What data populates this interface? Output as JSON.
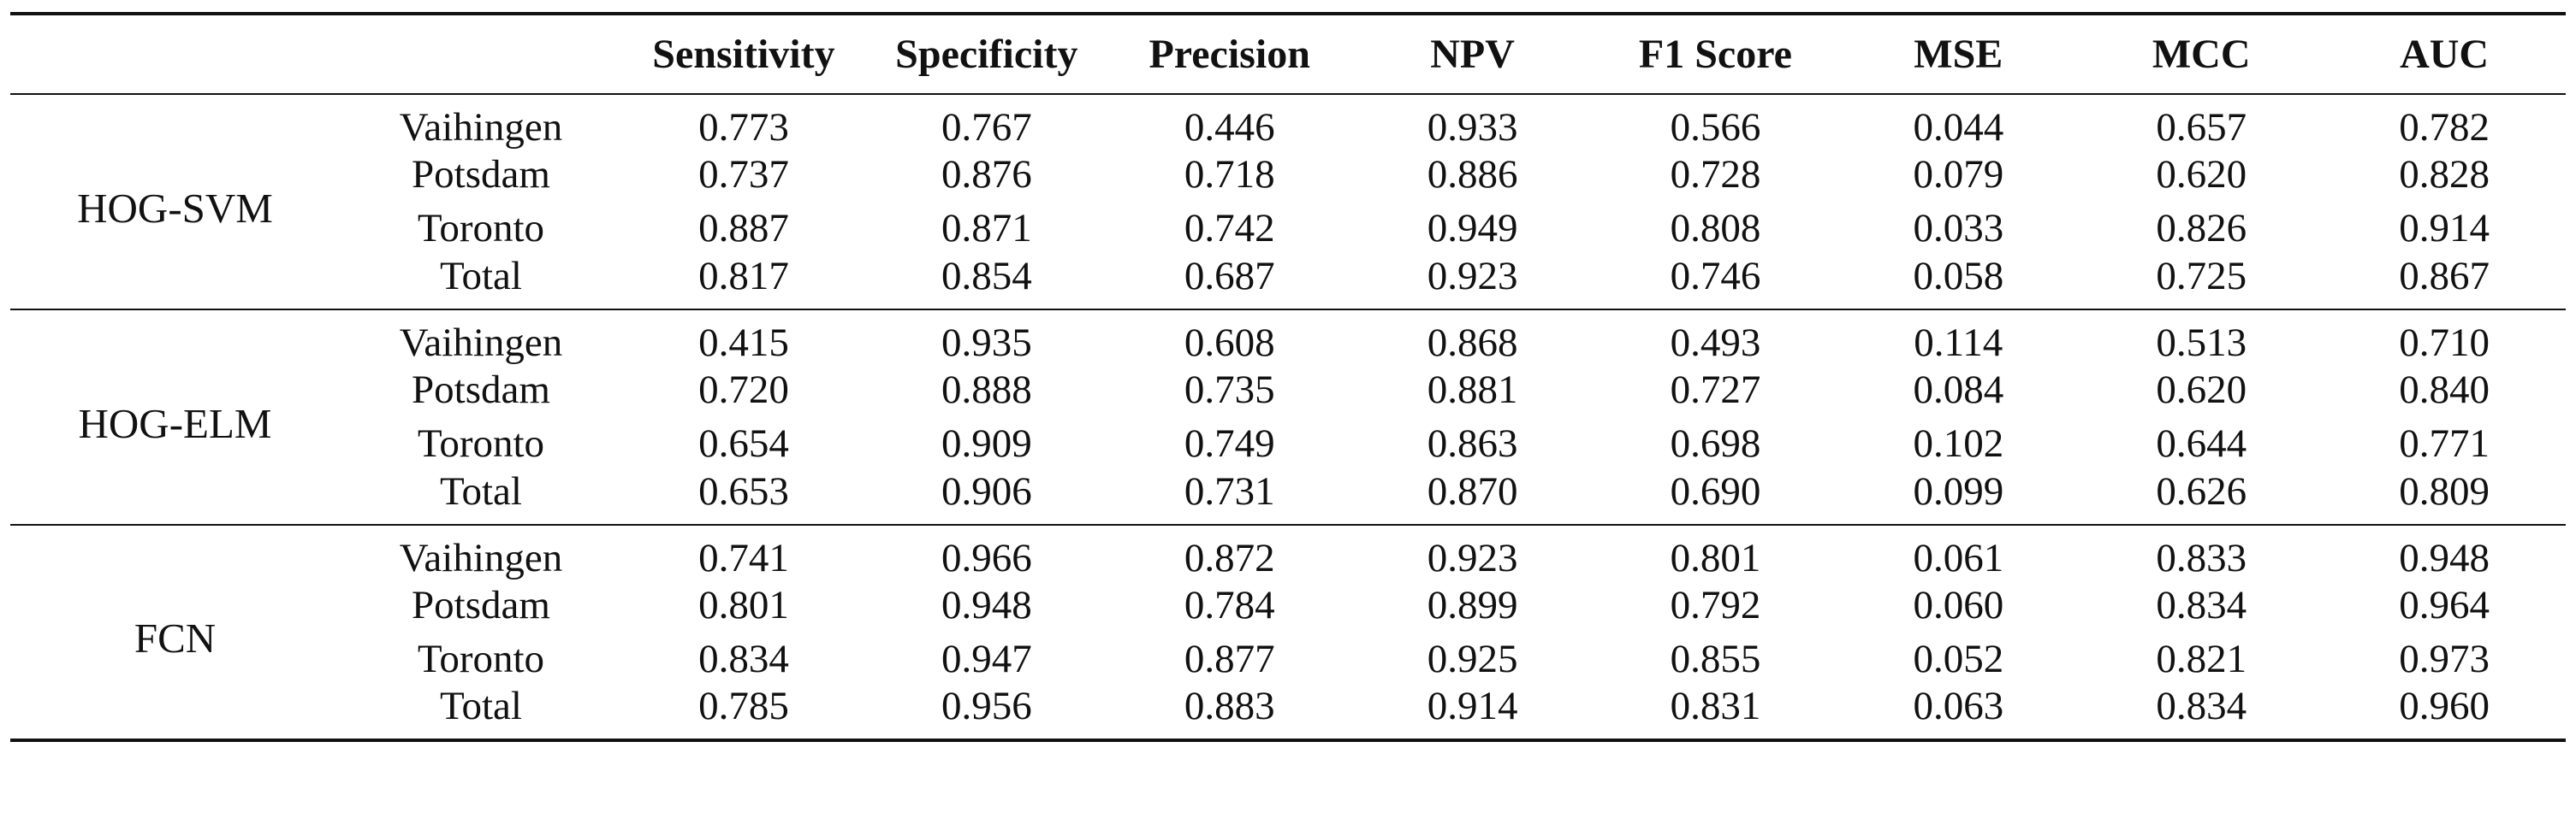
{
  "table": {
    "headers": [
      "",
      "",
      "Sensitivity",
      "Specificity",
      "Precision",
      "NPV",
      "F1 Score",
      "MSE",
      "MCC",
      "AUC"
    ],
    "groups": [
      {
        "method": "HOG-SVM",
        "rows": [
          {
            "dataset": "Vaihingen",
            "values": [
              "0.773",
              "0.767",
              "0.446",
              "0.933",
              "0.566",
              "0.044",
              "0.657",
              "0.782"
            ]
          },
          {
            "dataset": "Potsdam",
            "values": [
              "0.737",
              "0.876",
              "0.718",
              "0.886",
              "0.728",
              "0.079",
              "0.620",
              "0.828"
            ]
          },
          {
            "dataset": "Toronto",
            "values": [
              "0.887",
              "0.871",
              "0.742",
              "0.949",
              "0.808",
              "0.033",
              "0.826",
              "0.914"
            ]
          },
          {
            "dataset": "Total",
            "values": [
              "0.817",
              "0.854",
              "0.687",
              "0.923",
              "0.746",
              "0.058",
              "0.725",
              "0.867"
            ]
          }
        ]
      },
      {
        "method": "HOG-ELM",
        "rows": [
          {
            "dataset": "Vaihingen",
            "values": [
              "0.415",
              "0.935",
              "0.608",
              "0.868",
              "0.493",
              "0.114",
              "0.513",
              "0.710"
            ]
          },
          {
            "dataset": "Potsdam",
            "values": [
              "0.720",
              "0.888",
              "0.735",
              "0.881",
              "0.727",
              "0.084",
              "0.620",
              "0.840"
            ]
          },
          {
            "dataset": "Toronto",
            "values": [
              "0.654",
              "0.909",
              "0.749",
              "0.863",
              "0.698",
              "0.102",
              "0.644",
              "0.771"
            ]
          },
          {
            "dataset": "Total",
            "values": [
              "0.653",
              "0.906",
              "0.731",
              "0.870",
              "0.690",
              "0.099",
              "0.626",
              "0.809"
            ]
          }
        ]
      },
      {
        "method": "FCN",
        "rows": [
          {
            "dataset": "Vaihingen",
            "values": [
              "0.741",
              "0.966",
              "0.872",
              "0.923",
              "0.801",
              "0.061",
              "0.833",
              "0.948"
            ]
          },
          {
            "dataset": "Potsdam",
            "values": [
              "0.801",
              "0.948",
              "0.784",
              "0.899",
              "0.792",
              "0.060",
              "0.834",
              "0.964"
            ]
          },
          {
            "dataset": "Toronto",
            "values": [
              "0.834",
              "0.947",
              "0.877",
              "0.925",
              "0.855",
              "0.052",
              "0.821",
              "0.973"
            ]
          },
          {
            "dataset": "Total",
            "values": [
              "0.785",
              "0.956",
              "0.883",
              "0.914",
              "0.831",
              "0.063",
              "0.834",
              "0.960"
            ]
          }
        ]
      }
    ]
  }
}
